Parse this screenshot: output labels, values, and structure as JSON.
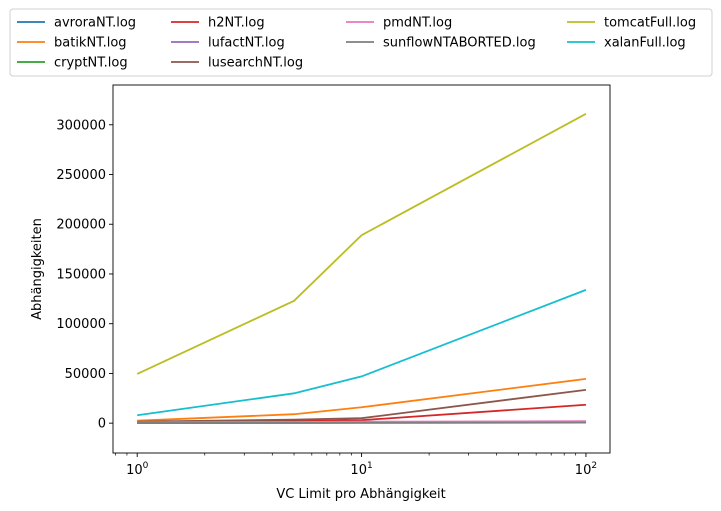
{
  "chart_data": {
    "type": "line",
    "xscale": "log",
    "xlabel": "VC Limit pro Abhängigkeit",
    "ylabel": "Abhängigkeiten",
    "xlim": [
      0.78,
      128
    ],
    "ylim": [
      -30000,
      340000
    ],
    "grid": false,
    "legend_position": "top, above plot",
    "x_ticks": [
      {
        "value": 1,
        "base": "10",
        "exp": "0"
      },
      {
        "value": 10,
        "base": "10",
        "exp": "1"
      },
      {
        "value": 100,
        "base": "10",
        "exp": "2"
      }
    ],
    "y_ticks": [
      {
        "value": 0,
        "label": "0"
      },
      {
        "value": 50000,
        "label": "50000"
      },
      {
        "value": 100000,
        "label": "100000"
      },
      {
        "value": 150000,
        "label": "150000"
      },
      {
        "value": 200000,
        "label": "200000"
      },
      {
        "value": 250000,
        "label": "250000"
      },
      {
        "value": 300000,
        "label": "300000"
      }
    ],
    "x": [
      1,
      5,
      10,
      100
    ],
    "series": [
      {
        "name": "avroraNT.log",
        "color": "#1f77b4",
        "values": [
          300,
          600,
          800,
          1200
        ]
      },
      {
        "name": "batikNT.log",
        "color": "#ff7f0e",
        "values": [
          2500,
          9000,
          16000,
          44500
        ]
      },
      {
        "name": "cryptNT.log",
        "color": "#2ca02c",
        "values": [
          100,
          200,
          300,
          500
        ]
      },
      {
        "name": "h2NT.log",
        "color": "#d62728",
        "values": [
          1000,
          2000,
          3000,
          18500
        ]
      },
      {
        "name": "lufactNT.log",
        "color": "#9467bd",
        "values": [
          200,
          400,
          500,
          800
        ]
      },
      {
        "name": "lusearchNT.log",
        "color": "#8c564b",
        "values": [
          1500,
          3500,
          5000,
          33500
        ]
      },
      {
        "name": "pmdNT.log",
        "color": "#e377c2",
        "values": [
          800,
          1200,
          1500,
          2000
        ]
      },
      {
        "name": "sunflowNTABORTED.log",
        "color": "#7f7f7f",
        "values": [
          200,
          300,
          400,
          600
        ]
      },
      {
        "name": "tomcatFull.log",
        "color": "#bcbd22",
        "values": [
          49500,
          123000,
          189000,
          311000
        ]
      },
      {
        "name": "xalanFull.log",
        "color": "#17becf",
        "values": [
          8000,
          30000,
          47000,
          134000
        ]
      }
    ]
  }
}
